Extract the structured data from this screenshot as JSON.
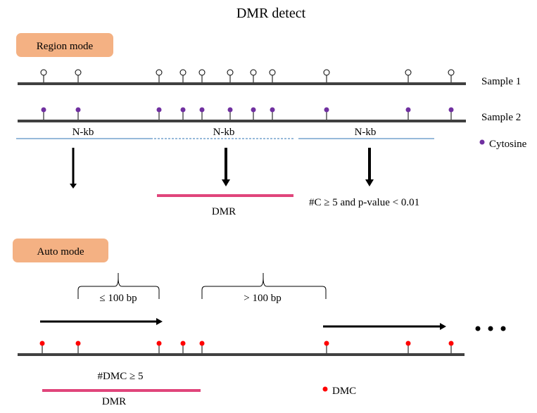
{
  "title": "DMR detect",
  "region_mode": {
    "label": "Region mode",
    "samples": [
      "Sample 1",
      "Sample 2"
    ],
    "window_label": "N-kb",
    "cytosine_legend": "Cytosine",
    "dmr_label": "DMR",
    "criterion": "#C ≥ 5 and p-value < 0.01"
  },
  "auto_mode": {
    "label": "Auto mode",
    "gap_small": "≤ 100 bp",
    "gap_large": "> 100 bp",
    "criterion": "#DMC ≥ 5",
    "dmr_label": "DMR",
    "dmc_legend": "DMC",
    "ellipsis": "• • •"
  },
  "colors": {
    "mode_box": "#f4b183",
    "cytosine": "#7030a0",
    "dmc": "#ff0000",
    "dmr_bar": "#e0457b",
    "window_line": "#2e75b6",
    "track": "#404040"
  }
}
